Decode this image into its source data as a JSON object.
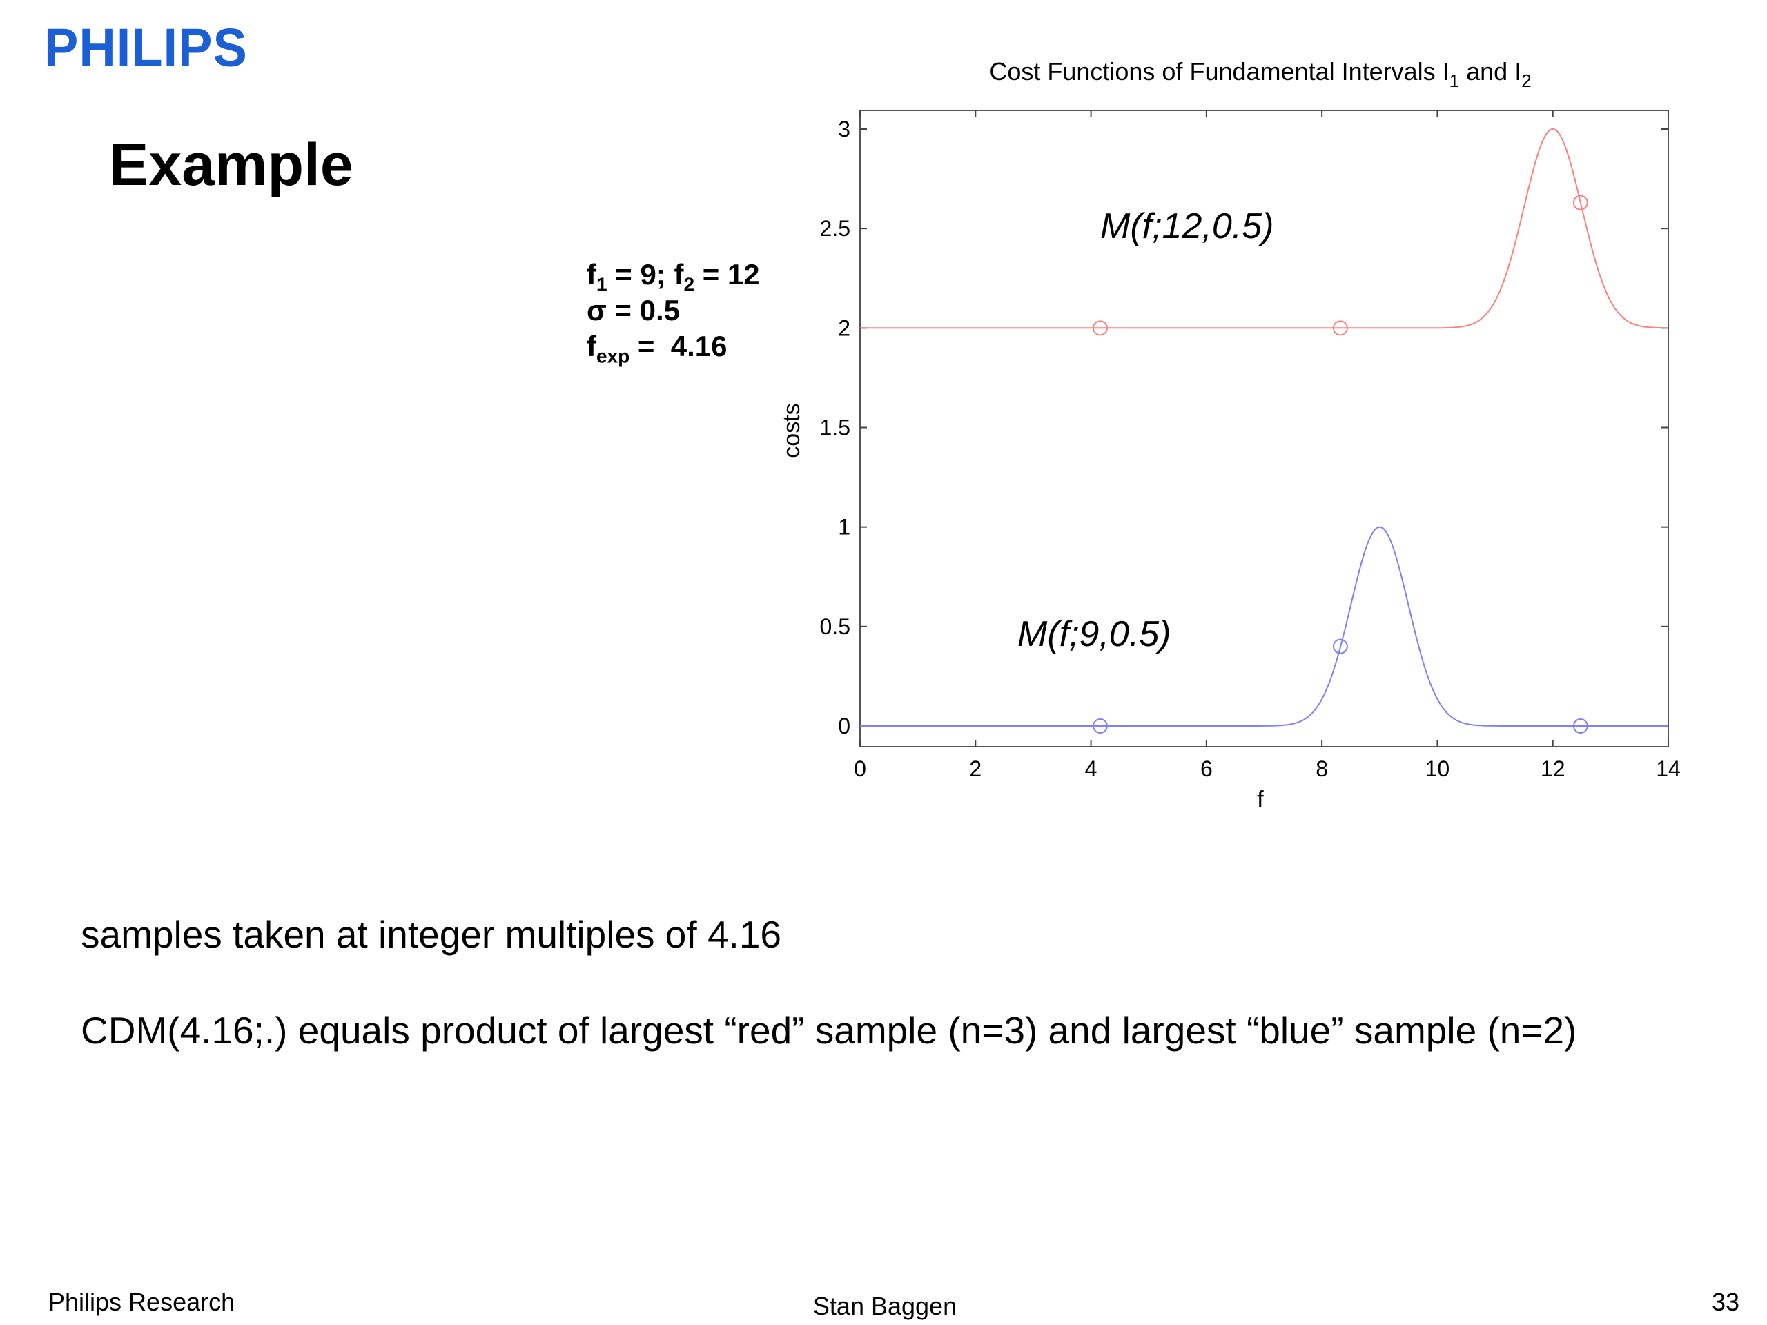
{
  "header": {
    "logo": "PHILIPS",
    "title": "Example"
  },
  "params": {
    "f1_label": "f",
    "f1_sub": "1",
    "f1_val": " = 9; ",
    "f2_label": "f",
    "f2_sub": "2",
    "f2_val": " = 12",
    "sigma_line": "σ = 0.5",
    "fexp_label": "f",
    "fexp_sub": "exp",
    "fexp_val": " =  4.16"
  },
  "body": {
    "line1": "samples taken at integer multiples of 4.16",
    "line2": "CDM(4.16;.) equals product of largest “red” sample (n=3) and largest “blue” sample (n=2)"
  },
  "footer": {
    "left": "Philips Research",
    "center": "Stan Baggen",
    "page": "33"
  },
  "chart_data": {
    "type": "line",
    "title": "Cost Functions of Fundamental Intervals I",
    "title_sub1": "1",
    "title_mid": " and I",
    "title_sub2": "2",
    "xlabel": "f",
    "ylabel": "costs",
    "xlim": [
      0,
      14
    ],
    "ylim": [
      -0.1,
      3.1
    ],
    "xticks": [
      "0",
      "2",
      "4",
      "6",
      "8",
      "10",
      "12",
      "14"
    ],
    "yticks": [
      "0",
      "0.5",
      "1",
      "1.5",
      "2",
      "2.5",
      "3"
    ],
    "grid": false,
    "series": [
      {
        "label": "M(f;12,0.5)",
        "color": "#ff8080",
        "mu": 12,
        "sigma": 0.5,
        "offset": 2,
        "samples": [
          {
            "x": 4.16,
            "y": 2.0
          },
          {
            "x": 8.32,
            "y": 2.0
          },
          {
            "x": 12.48,
            "y": 2.63
          }
        ]
      },
      {
        "label": "M(f;9,0.5)",
        "color": "#8080ff",
        "mu": 9,
        "sigma": 0.5,
        "offset": 0,
        "samples": [
          {
            "x": 4.16,
            "y": 0.0
          },
          {
            "x": 8.32,
            "y": 0.4
          },
          {
            "x": 12.48,
            "y": 0.0
          }
        ]
      }
    ],
    "annotations": [
      "M(f;12,0.5)",
      "M(f;9,0.5)"
    ]
  }
}
